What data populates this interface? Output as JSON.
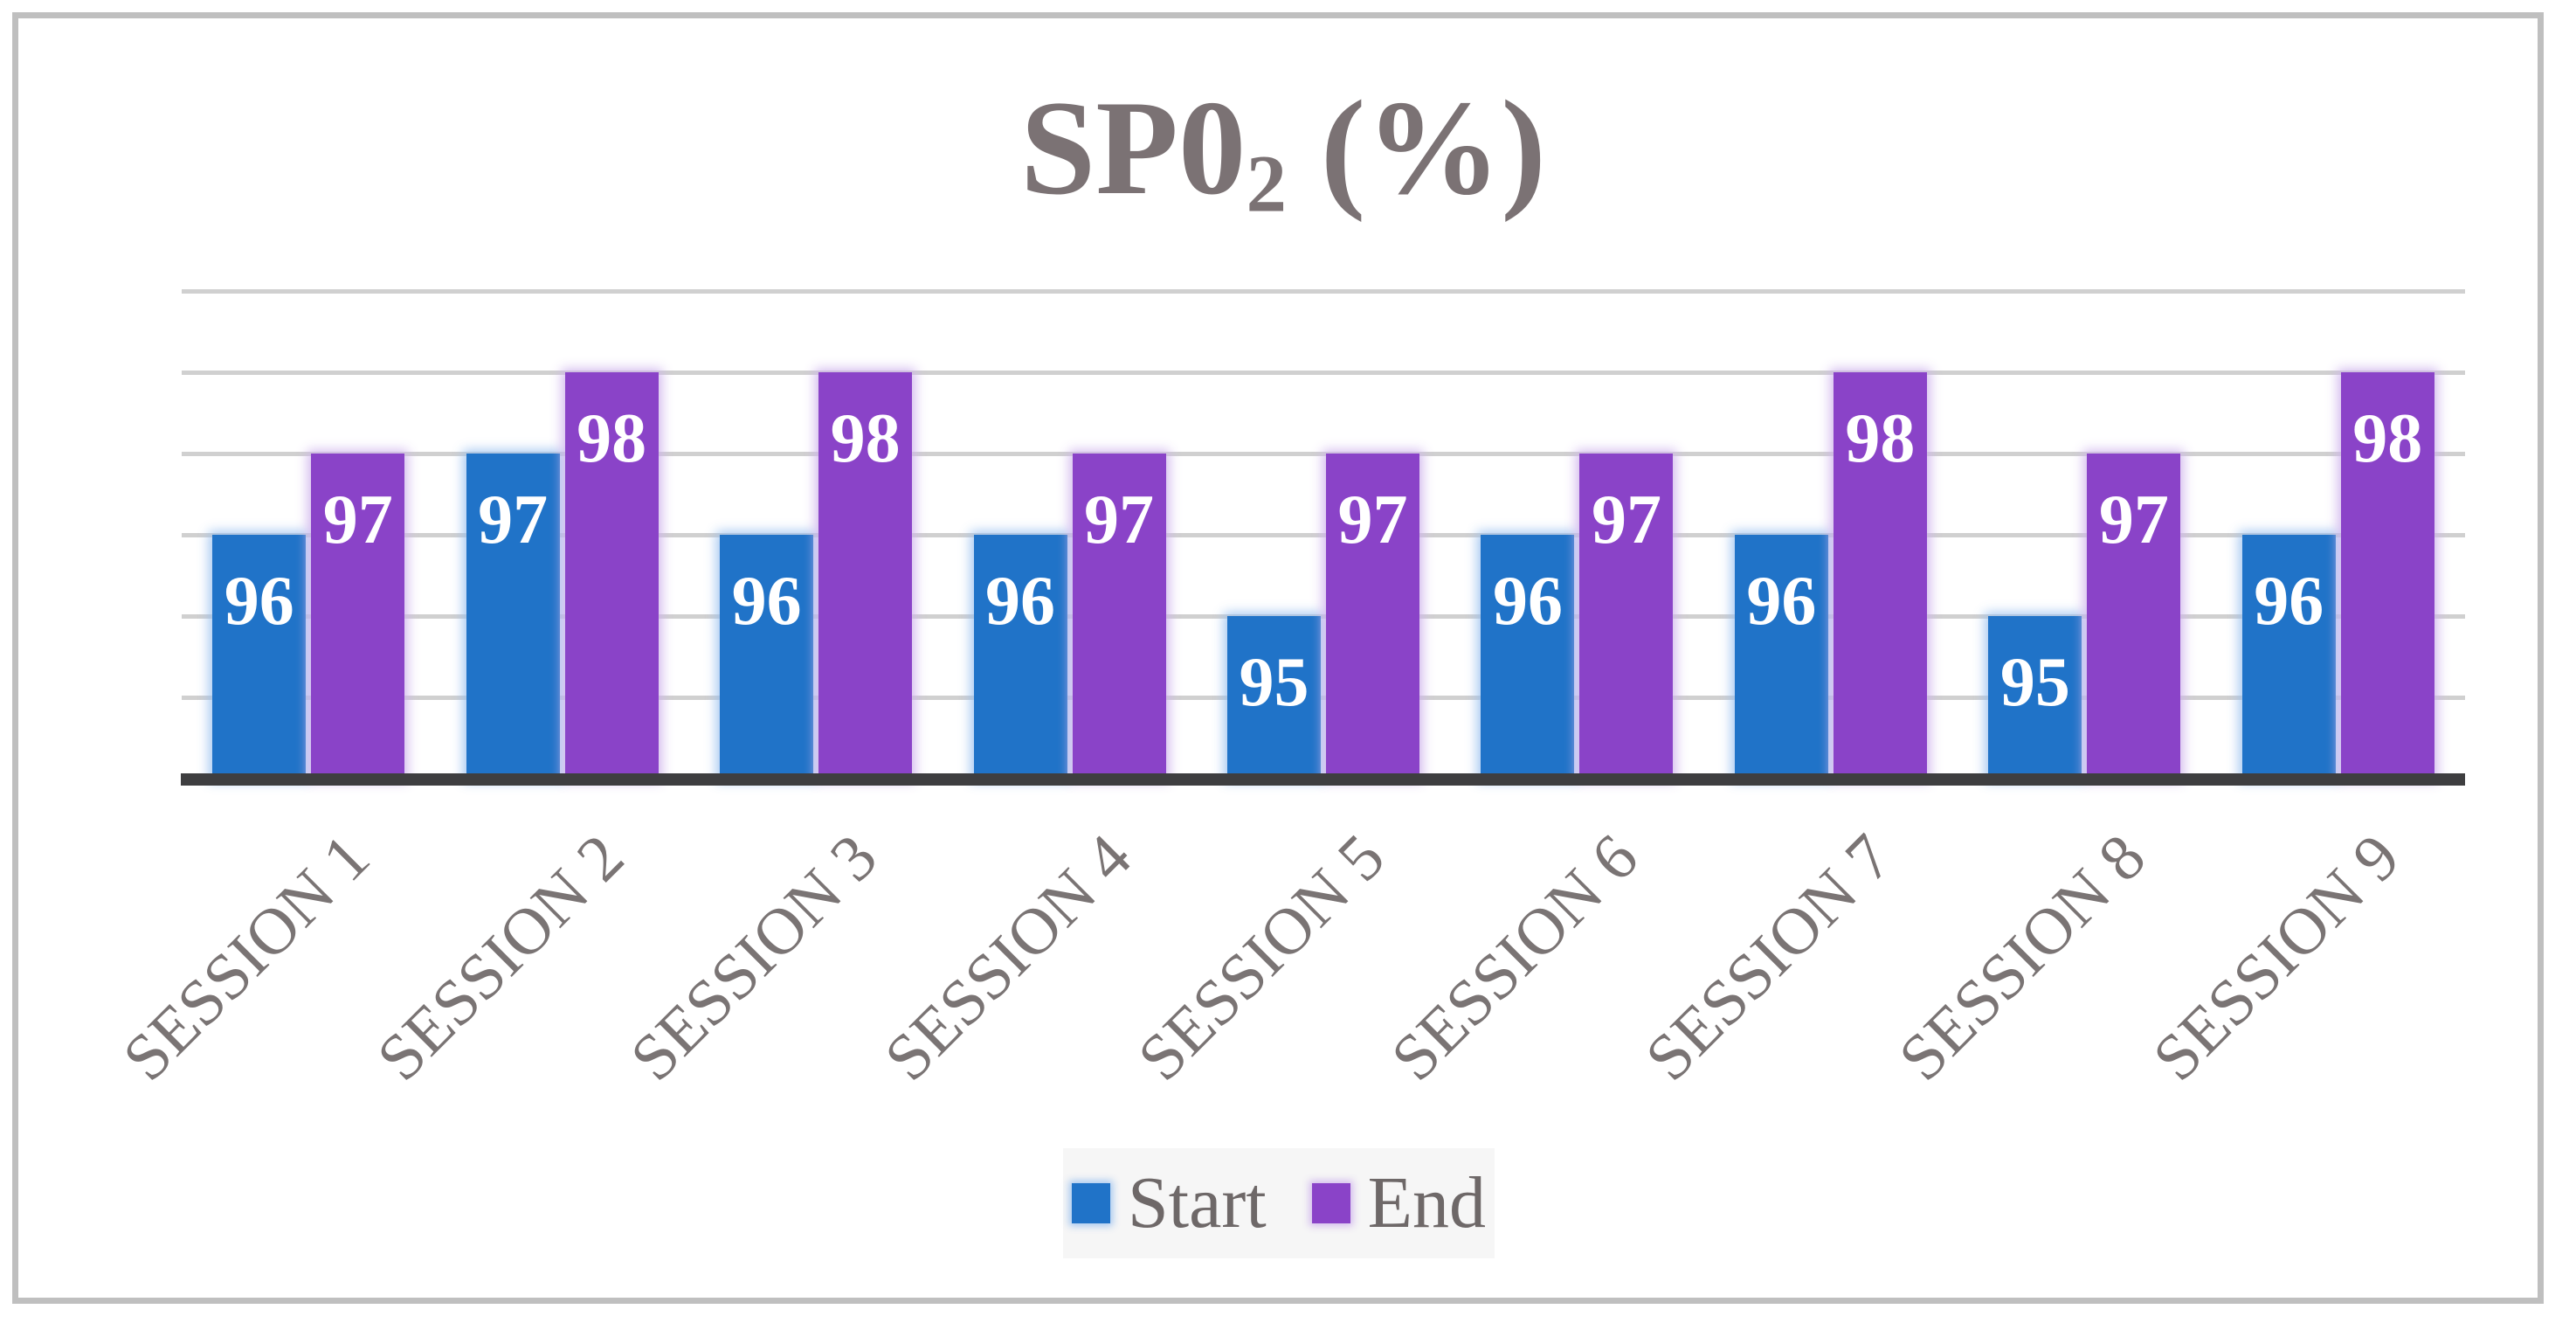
{
  "title_parts": {
    "prefix": "SP0",
    "subscript": "2",
    "suffix": " (%)"
  },
  "chart_data": {
    "type": "bar",
    "title": "SP0₂ (%)",
    "categories": [
      "SESSION 1",
      "SESSION 2",
      "SESSION 3",
      "SESSION 4",
      "SESSION 5",
      "SESSION 6",
      "SESSION 7",
      "SESSION 8",
      "SESSION 9"
    ],
    "series": [
      {
        "name": "Start",
        "color": "#2073c8",
        "edge_glow": "#bdd3f0",
        "values": [
          96,
          97,
          96,
          96,
          95,
          96,
          96,
          95,
          96
        ]
      },
      {
        "name": "End",
        "color": "#8a43c8",
        "edge_glow": "#d6c3ee",
        "values": [
          97,
          98,
          98,
          97,
          97,
          97,
          98,
          97,
          98
        ]
      }
    ],
    "ylim": [
      93,
      99
    ],
    "grid_step": 1,
    "grid_on": true,
    "y_axis_labels_visible": false,
    "data_labels_position": "inside-end",
    "data_label_color": "#ffffff",
    "legend_position": "bottom",
    "legend_background": "#f6f6f6",
    "legend_text_color": "#6e6868",
    "category_label_color": "#7a7474",
    "title_color": "#7b7274",
    "gridline_color": "#d0d0d0",
    "axis_line_color": "#3e3e40",
    "frame_border_color": "#bfbfbf"
  }
}
